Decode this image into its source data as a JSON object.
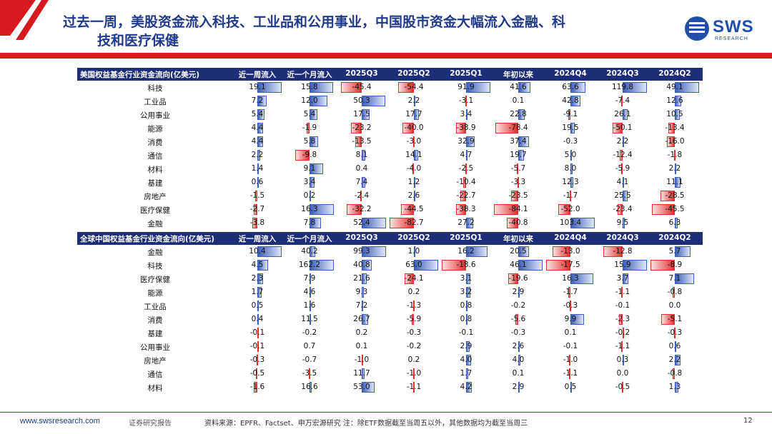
{
  "title": {
    "line1": "过去一周，美股资金流入科技、工业品和公用事业，中国股市资金大幅流入金融、科",
    "line2": "技和医疗保健"
  },
  "logo": {
    "text": "SWS",
    "sub": "RESEARCH"
  },
  "colors": {
    "accent": "#d71920",
    "header": "#1c2e78",
    "positive": "#3e5fb8",
    "negative": "#e23030"
  },
  "columns": [
    "近一周流入",
    "近一个月流入",
    "2025Q3",
    "2025Q2",
    "2025Q1",
    "年初以来",
    "2024Q4",
    "2024Q3",
    "2024Q2"
  ],
  "tables": [
    {
      "label": "美国权益基金行业资金流向(亿美元)",
      "rows": [
        {
          "name": "科技",
          "values": [
            19.1,
            15.8,
            -45.4,
            -54.4,
            91.9,
            41.6,
            63.6,
            119.8,
            49.1
          ]
        },
        {
          "name": "工业品",
          "values": [
            7.2,
            12.0,
            50.3,
            2.2,
            -3.1,
            0.1,
            42.8,
            -7.4,
            12.6
          ]
        },
        {
          "name": "公用事业",
          "values": [
            5.4,
            5.4,
            17.5,
            17.7,
            3.4,
            22.8,
            -9.1,
            26.1,
            10.5
          ]
        },
        {
          "name": "能源",
          "values": [
            4.4,
            -1.9,
            -23.2,
            -40.0,
            -38.9,
            -78.4,
            19.5,
            -50.1,
            -13.4
          ]
        },
        {
          "name": "消费",
          "values": [
            4.4,
            5.8,
            -13.5,
            -3.0,
            32.9,
            37.4,
            -0.3,
            2.2,
            -16.0
          ]
        },
        {
          "name": "通信",
          "values": [
            2.2,
            -9.8,
            8.1,
            14.1,
            4.7,
            19.7,
            5.0,
            -12.4,
            -1.8
          ]
        },
        {
          "name": "材料",
          "values": [
            1.4,
            9.1,
            0.4,
            -4.0,
            -2.5,
            -5.7,
            8.0,
            -5.9,
            2.2
          ]
        },
        {
          "name": "基建",
          "values": [
            0.6,
            3.4,
            7.4,
            1.2,
            -10.4,
            -3.3,
            12.3,
            4.1,
            11.1
          ]
        },
        {
          "name": "房地产",
          "values": [
            -1.5,
            0.2,
            -2.4,
            2.6,
            -22.7,
            -23.5,
            -1.7,
            25.5,
            -28.5
          ]
        },
        {
          "name": "医疗保健",
          "values": [
            -2.7,
            16.3,
            -32.2,
            -44.5,
            -38.3,
            -84.1,
            -52.0,
            -23.4,
            -45.5
          ]
        },
        {
          "name": "金融",
          "values": [
            -3.8,
            7.8,
            52.4,
            -82.7,
            27.2,
            -40.8,
            103.4,
            9.5,
            6.3
          ]
        }
      ]
    },
    {
      "label": "全球中国权益基金行业资金流向(亿美元)",
      "rows": [
        {
          "name": "金融",
          "values": [
            10.4,
            40.2,
            99.3,
            1.0,
            16.2,
            20.5,
            -13.0,
            -12.8,
            5.7
          ]
        },
        {
          "name": "科技",
          "values": [
            4.5,
            162.2,
            40.8,
            63.0,
            -18.6,
            46.1,
            -17.5,
            15.9,
            -8.9
          ]
        },
        {
          "name": "医疗保健",
          "values": [
            2.3,
            7.9,
            21.6,
            -24.1,
            3.1,
            -19.6,
            16.3,
            3.7,
            7.1
          ]
        },
        {
          "name": "能源",
          "values": [
            1.7,
            4.6,
            9.3,
            0.2,
            3.2,
            2.9,
            -1.7,
            -1.1,
            -0.8
          ]
        },
        {
          "name": "工业品",
          "values": [
            0.5,
            1.6,
            7.2,
            -1.3,
            0.8,
            -0.2,
            -0.3,
            -0.1,
            0.0
          ]
        },
        {
          "name": "消费",
          "values": [
            0.4,
            11.5,
            26.7,
            -5.9,
            0.8,
            -5.6,
            9.9,
            -2.3,
            -5.1
          ]
        },
        {
          "name": "基建",
          "values": [
            -0.1,
            -0.2,
            0.2,
            -0.3,
            -0.1,
            -0.3,
            0.1,
            -0.2,
            -0.3
          ]
        },
        {
          "name": "公用事业",
          "values": [
            -0.1,
            0.7,
            0.1,
            -0.2,
            2.9,
            2.6,
            -0.1,
            -1.1,
            0.6
          ]
        },
        {
          "name": "房地产",
          "values": [
            -0.3,
            -0.7,
            -1.0,
            0.2,
            4.0,
            4.0,
            -1.0,
            0.3,
            2.2
          ]
        },
        {
          "name": "通信",
          "values": [
            -0.5,
            -3.5,
            11.7,
            -1.0,
            1.7,
            0.1,
            -1.1,
            0.0,
            -0.8
          ]
        },
        {
          "name": "材料",
          "values": [
            -1.6,
            16.6,
            53.0,
            -1.1,
            4.2,
            2.9,
            0.5,
            -0.5,
            1.3
          ]
        }
      ]
    }
  ],
  "footer": {
    "url": "www.swsresearch.com",
    "doc_type": "证券研究报告",
    "source": "资料来源：EPFR、Factset、申万宏源研究 注：除ETF数据截至当周五以外，其他数据均为截至当周三",
    "page": "12"
  }
}
